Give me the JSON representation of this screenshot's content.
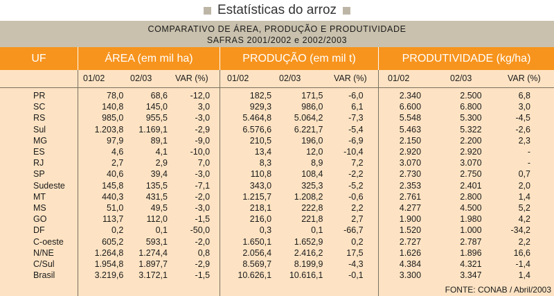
{
  "title": "Estatísticas do arroz",
  "subtitle_line1": "COMPARATIVO DE ÁREA, PRODUÇÃO E PRODUTIVIDADE",
  "subtitle_line2": "SAFRAS 2001/2002 e 2002/2003",
  "headers": {
    "uf": "UF",
    "area": "ÁREA (em mil ha)",
    "producao": "PRODUÇÃO (em mil t)",
    "produtividade": "PRODUTIVIDADE (kg/ha)"
  },
  "subheaders": [
    "01/02",
    "02/03",
    "VAR (%)",
    "01/02",
    "02/03",
    "VAR (%)",
    "01/02",
    "02/03",
    "VAR (%)"
  ],
  "rows": [
    [
      "PR",
      "78,0",
      "68,6",
      "-12,0",
      "182,5",
      "171,5",
      "-6,0",
      "2.340",
      "2.500",
      "6,8"
    ],
    [
      "SC",
      "140,8",
      "145,0",
      "3,0",
      "929,3",
      "986,0",
      "6,1",
      "6.600",
      "6.800",
      "3,0"
    ],
    [
      "RS",
      "985,0",
      "955,5",
      "-3,0",
      "5.464,8",
      "5.064,2",
      "-7,3",
      "5.548",
      "5.300",
      "-4,5"
    ],
    [
      "Sul",
      "1.203,8",
      "1.169,1",
      "-2,9",
      "6.576,6",
      "6.221,7",
      "-5,4",
      "5.463",
      "5.322",
      "-2,6"
    ],
    [
      "MG",
      "97,9",
      "89,1",
      "-9,0",
      "210,5",
      "196,0",
      "-6,9",
      "2.150",
      "2.200",
      "2,3"
    ],
    [
      "ES",
      "4,6",
      "4,1",
      "-10,0",
      "13,4",
      "12,0",
      "-10,4",
      "2.920",
      "2.920",
      "-"
    ],
    [
      "RJ",
      "2,7",
      "2,9",
      "7,0",
      "8,3",
      "8,9",
      "7,2",
      "3.070",
      "3.070",
      "-"
    ],
    [
      "SP",
      "40,6",
      "39,4",
      "-3,0",
      "110,8",
      "108,4",
      "-2,2",
      "2.730",
      "2.750",
      "0,7"
    ],
    [
      "Sudeste",
      "145,8",
      "135,5",
      "-7,1",
      "343,0",
      "325,3",
      "-5,2",
      "2.353",
      "2.401",
      "2,0"
    ],
    [
      "MT",
      "440,3",
      "431,5",
      "-2,0",
      "1.215,7",
      "1.208,2",
      "-0,6",
      "2.761",
      "2.800",
      "1,4"
    ],
    [
      "MS",
      "51,0",
      "49,5",
      "-3,0",
      "218,1",
      "222,8",
      "2,2",
      "4.277",
      "4.500",
      "5,2"
    ],
    [
      "GO",
      "113,7",
      "112,0",
      "-1,5",
      "216,0",
      "221,8",
      "2,7",
      "1.900",
      "1.980",
      "4,2"
    ],
    [
      "DF",
      "0,2",
      "0,1",
      "-50,0",
      "0,3",
      "0,1",
      "-66,7",
      "1.520",
      "1.000",
      "-34,2"
    ],
    [
      "C-oeste",
      "605,2",
      "593,1",
      "-2,0",
      "1.650,1",
      "1.652,9",
      "0,2",
      "2.727",
      "2.787",
      "2,2"
    ],
    [
      "N/NE",
      "1.264,8",
      "1.274,4",
      "0,8",
      "2.056,4",
      "2.416,2",
      "17,5",
      "1.626",
      "1.896",
      "16,6"
    ],
    [
      "C/Sul",
      "1.954,8",
      "1.897,7",
      "-2,9",
      "8.569,7",
      "8.199,9",
      "-4,3",
      "4.384",
      "4.321",
      "-1,4"
    ],
    [
      "Brasil",
      "3.219,6",
      "3.172,1",
      "-1,5",
      "10.626,1",
      "10.616,1",
      "-0,1",
      "3.300",
      "3.347",
      "1,4"
    ]
  ],
  "source": "FONTE: CONAB / Abril/2003"
}
